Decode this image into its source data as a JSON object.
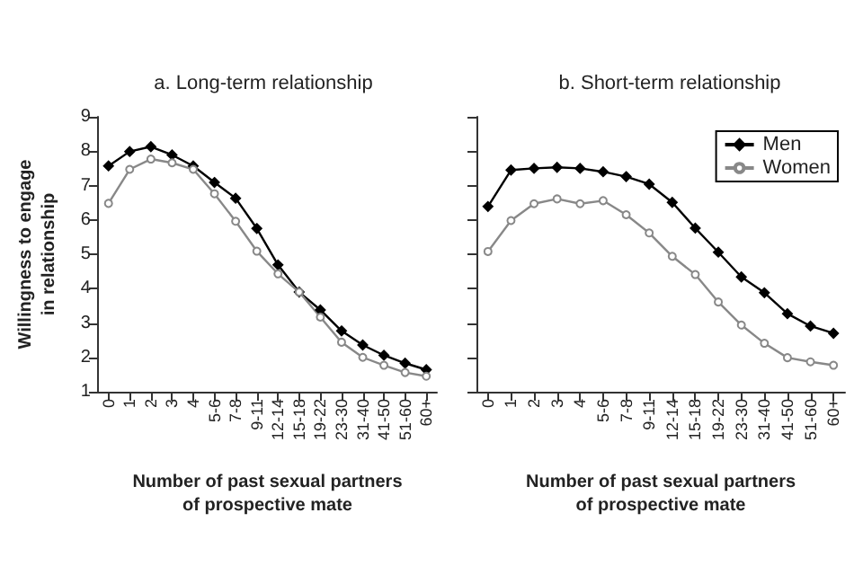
{
  "chart_data": [
    {
      "type": "line",
      "title": "a. Long-term relationship",
      "xlabel": "Number of past sexual partners\nof prospective mate",
      "ylabel": "Willingness to engage\nin relationship",
      "categories": [
        "0",
        "1",
        "2",
        "3",
        "4",
        "5-6",
        "7-8",
        "9-11",
        "12-14",
        "15-18",
        "19-22",
        "23-30",
        "31-40",
        "41-50",
        "51-60",
        "60+"
      ],
      "series": [
        {
          "color": "#000000",
          "marker": "diamond",
          "values": [
            7.57,
            7.99,
            8.13,
            7.89,
            7.57,
            7.09,
            6.63,
            5.75,
            4.69,
            3.9,
            3.38,
            2.77,
            2.36,
            2.06,
            1.83,
            1.64
          ]
        },
        {
          "color": "#888888",
          "marker": "circle",
          "values": [
            6.48,
            7.47,
            7.77,
            7.66,
            7.47,
            6.76,
            5.96,
            5.09,
            4.43,
            3.9,
            3.17,
            2.44,
            2.0,
            1.77,
            1.56,
            1.45
          ]
        }
      ],
      "ylim": [
        1,
        9
      ],
      "yticks": [
        1,
        2,
        3,
        4,
        5,
        6,
        7,
        8,
        9
      ],
      "grid": false,
      "legend": false
    },
    {
      "type": "line",
      "title": "b. Short-term relationship",
      "xlabel": "Number of past sexual partners\nof prospective mate",
      "categories": [
        "0",
        "1",
        "2",
        "3",
        "4",
        "5-6",
        "7-8",
        "9-11",
        "12-14",
        "15-18",
        "19-22",
        "23-30",
        "31-40",
        "41-50",
        "51-60",
        "60+"
      ],
      "series": [
        {
          "name": "Men",
          "color": "#000000",
          "marker": "diamond",
          "values": [
            6.39,
            7.45,
            7.5,
            7.53,
            7.5,
            7.4,
            7.26,
            7.04,
            6.51,
            5.76,
            5.06,
            4.34,
            3.88,
            3.27,
            2.91,
            2.7
          ]
        },
        {
          "name": "Women",
          "color": "#888888",
          "marker": "circle",
          "values": [
            5.08,
            5.98,
            6.47,
            6.61,
            6.47,
            6.56,
            6.15,
            5.62,
            4.94,
            4.41,
            3.61,
            2.94,
            2.41,
            1.99,
            1.87,
            1.77
          ]
        }
      ],
      "ylim": [
        1,
        9
      ],
      "yticks": [
        1,
        2,
        3,
        4,
        5,
        6,
        7,
        8,
        9
      ],
      "tick_labels": "x",
      "grid": false,
      "legend": "top right"
    }
  ]
}
